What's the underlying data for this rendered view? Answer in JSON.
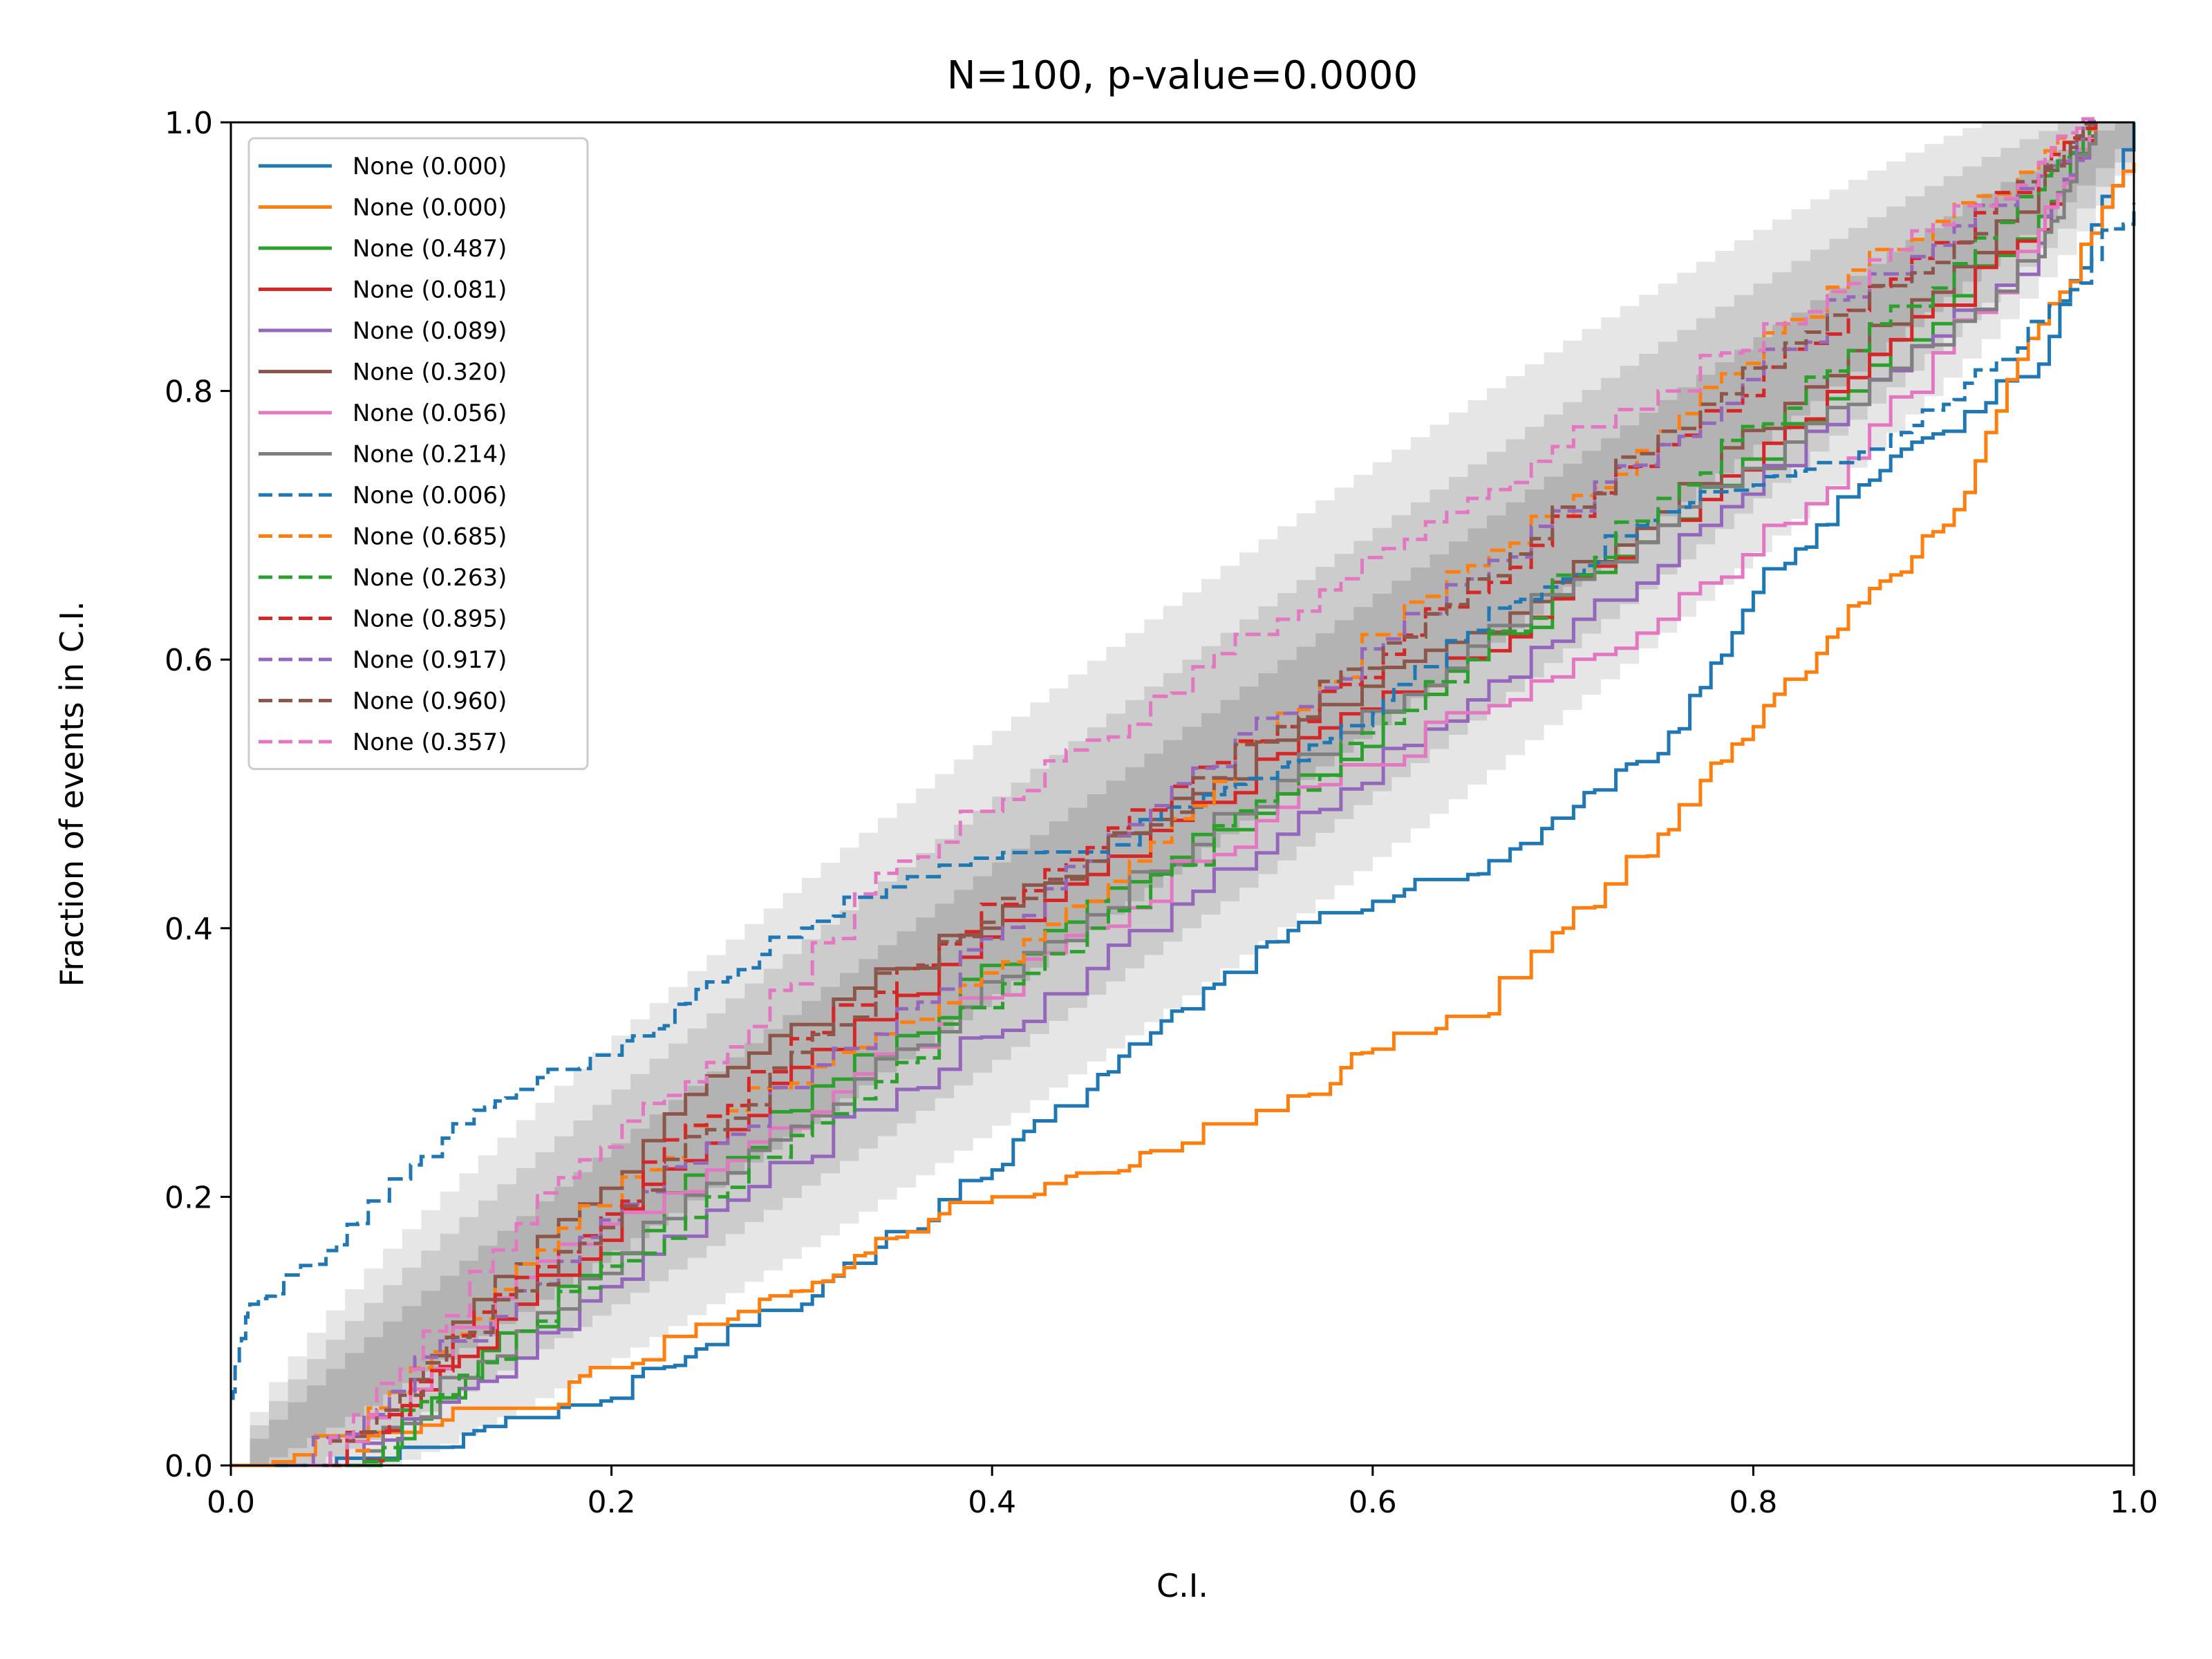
{
  "chart_data": {
    "type": "line",
    "title": "N=100, p-value=0.0000",
    "xlabel": "C.I.",
    "ylabel": "Fraction of events in C.I.",
    "xlim": [
      0,
      1
    ],
    "ylim": [
      0,
      1
    ],
    "x_ticks": [
      "0.0",
      "0.2",
      "0.4",
      "0.6",
      "0.8",
      "1.0"
    ],
    "y_ticks": [
      "0.0",
      "0.2",
      "0.4",
      "0.6",
      "0.8",
      "1.0"
    ],
    "grid": false,
    "legend_position": "top-left",
    "confidence_bands": [
      {
        "level": "1-sigma",
        "color": "#b3b3b3"
      },
      {
        "level": "2-sigma",
        "color": "#cccccc"
      },
      {
        "level": "3-sigma",
        "color": "#e6e6e6"
      }
    ],
    "series": [
      {
        "name": "None (0.000)",
        "color": "#1f77b4",
        "dash": "solid",
        "x": [
          0,
          0.1,
          0.15,
          0.2,
          0.25,
          0.3,
          0.35,
          0.4,
          0.45,
          0.5,
          0.55,
          0.6,
          0.65,
          0.7,
          0.75,
          0.8,
          0.85,
          0.9,
          0.95,
          1.0
        ],
        "y": [
          0,
          0.01,
          0.03,
          0.05,
          0.09,
          0.12,
          0.17,
          0.22,
          0.28,
          0.34,
          0.39,
          0.42,
          0.44,
          0.48,
          0.53,
          0.65,
          0.72,
          0.77,
          0.82,
          1.0
        ]
      },
      {
        "name": "None (0.000)",
        "color": "#ff7f0e",
        "dash": "solid",
        "x": [
          0,
          0.1,
          0.15,
          0.2,
          0.25,
          0.3,
          0.35,
          0.4,
          0.45,
          0.5,
          0.55,
          0.6,
          0.65,
          0.7,
          0.75,
          0.8,
          0.85,
          0.9,
          0.95,
          1.0
        ],
        "y": [
          0,
          0.03,
          0.04,
          0.07,
          0.1,
          0.13,
          0.17,
          0.2,
          0.21,
          0.24,
          0.26,
          0.31,
          0.33,
          0.4,
          0.47,
          0.55,
          0.64,
          0.7,
          0.85,
          0.97
        ]
      },
      {
        "name": "None (0.487)",
        "color": "#2ca02c",
        "dash": "solid",
        "x": [
          0.07,
          0.15,
          0.25,
          0.35,
          0.45,
          0.55,
          0.65,
          0.75,
          0.85,
          0.95,
          0.98
        ],
        "y": [
          0,
          0.1,
          0.22,
          0.32,
          0.42,
          0.5,
          0.6,
          0.7,
          0.8,
          0.93,
          1.0
        ]
      },
      {
        "name": "None (0.081)",
        "color": "#d62728",
        "dash": "solid",
        "x": [
          0.06,
          0.15,
          0.25,
          0.35,
          0.45,
          0.55,
          0.65,
          0.75,
          0.85,
          0.95,
          0.98
        ],
        "y": [
          0,
          0.12,
          0.24,
          0.35,
          0.44,
          0.53,
          0.6,
          0.7,
          0.81,
          0.92,
          1.0
        ]
      },
      {
        "name": "None (0.089)",
        "color": "#9467bd",
        "dash": "solid",
        "x": [
          0.06,
          0.15,
          0.25,
          0.35,
          0.45,
          0.55,
          0.65,
          0.75,
          0.85,
          0.95,
          0.98
        ],
        "y": [
          0,
          0.08,
          0.19,
          0.28,
          0.37,
          0.47,
          0.57,
          0.67,
          0.79,
          0.91,
          1.0
        ]
      },
      {
        "name": "None (0.320)",
        "color": "#8c564b",
        "dash": "solid",
        "x": [
          0.05,
          0.15,
          0.25,
          0.35,
          0.45,
          0.55,
          0.65,
          0.75,
          0.85,
          0.95,
          0.98
        ],
        "y": [
          0,
          0.15,
          0.29,
          0.37,
          0.45,
          0.54,
          0.62,
          0.71,
          0.83,
          0.95,
          1.0
        ]
      },
      {
        "name": "None (0.056)",
        "color": "#e377c2",
        "dash": "solid",
        "x": [
          0.05,
          0.15,
          0.25,
          0.35,
          0.45,
          0.55,
          0.65,
          0.75,
          0.85,
          0.95,
          0.98
        ],
        "y": [
          0,
          0.14,
          0.22,
          0.31,
          0.4,
          0.49,
          0.56,
          0.63,
          0.75,
          0.92,
          1.0
        ]
      },
      {
        "name": "None (0.214)",
        "color": "#7f7f7f",
        "dash": "solid",
        "x": [
          0.06,
          0.15,
          0.25,
          0.35,
          0.45,
          0.55,
          0.65,
          0.75,
          0.85,
          0.95,
          0.98
        ],
        "y": [
          0,
          0.1,
          0.21,
          0.31,
          0.41,
          0.51,
          0.61,
          0.7,
          0.79,
          0.9,
          1.0
        ]
      },
      {
        "name": "None (0.006)",
        "color": "#1f77b4",
        "dash": "dashed",
        "x": [
          0,
          0.01,
          0.05,
          0.1,
          0.15,
          0.2,
          0.25,
          0.3,
          0.35,
          0.4,
          0.45,
          0.5,
          0.55,
          0.6,
          0.65,
          0.7,
          0.75,
          0.8,
          0.85,
          0.9,
          0.95,
          1.0
        ],
        "y": [
          0.05,
          0.12,
          0.16,
          0.23,
          0.28,
          0.3,
          0.36,
          0.4,
          0.43,
          0.45,
          0.45,
          0.49,
          0.52,
          0.56,
          0.62,
          0.66,
          0.71,
          0.73,
          0.74,
          0.79,
          0.85,
          0.94
        ]
      },
      {
        "name": "None (0.685)",
        "color": "#ff7f0e",
        "dash": "dashed",
        "x": [
          0.05,
          0.15,
          0.25,
          0.35,
          0.45,
          0.55,
          0.65,
          0.75,
          0.85,
          0.95,
          0.98
        ],
        "y": [
          0,
          0.15,
          0.26,
          0.33,
          0.42,
          0.56,
          0.67,
          0.77,
          0.89,
          0.97,
          1.0
        ]
      },
      {
        "name": "None (0.263)",
        "color": "#2ca02c",
        "dash": "dashed",
        "x": [
          0.06,
          0.15,
          0.25,
          0.35,
          0.45,
          0.55,
          0.65,
          0.75,
          0.85,
          0.95,
          0.98
        ],
        "y": [
          0,
          0.1,
          0.2,
          0.3,
          0.4,
          0.5,
          0.6,
          0.72,
          0.83,
          0.95,
          1.0
        ]
      },
      {
        "name": "None (0.895)",
        "color": "#d62728",
        "dash": "dashed",
        "x": [
          0.05,
          0.15,
          0.25,
          0.35,
          0.45,
          0.55,
          0.65,
          0.75,
          0.85,
          0.95,
          0.98
        ],
        "y": [
          0,
          0.14,
          0.26,
          0.37,
          0.46,
          0.55,
          0.65,
          0.76,
          0.86,
          0.96,
          1.0
        ]
      },
      {
        "name": "None (0.917)",
        "color": "#9467bd",
        "dash": "dashed",
        "x": [
          0.03,
          0.15,
          0.25,
          0.35,
          0.45,
          0.55,
          0.65,
          0.75,
          0.85,
          0.95,
          0.98
        ],
        "y": [
          0,
          0.13,
          0.24,
          0.34,
          0.45,
          0.56,
          0.66,
          0.76,
          0.87,
          0.96,
          1.0
        ]
      },
      {
        "name": "None (0.960)",
        "color": "#8c564b",
        "dash": "dashed",
        "x": [
          0.04,
          0.15,
          0.25,
          0.35,
          0.45,
          0.55,
          0.65,
          0.75,
          0.85,
          0.95,
          0.98
        ],
        "y": [
          0,
          0.13,
          0.25,
          0.37,
          0.45,
          0.55,
          0.66,
          0.77,
          0.86,
          0.96,
          1.0
        ]
      },
      {
        "name": "None (0.357)",
        "color": "#e377c2",
        "dash": "dashed",
        "x": [
          0.04,
          0.15,
          0.25,
          0.35,
          0.45,
          0.55,
          0.65,
          0.75,
          0.85,
          0.95,
          0.98
        ],
        "y": [
          0,
          0.18,
          0.3,
          0.45,
          0.54,
          0.63,
          0.72,
          0.8,
          0.88,
          0.97,
          1.0
        ]
      }
    ]
  }
}
